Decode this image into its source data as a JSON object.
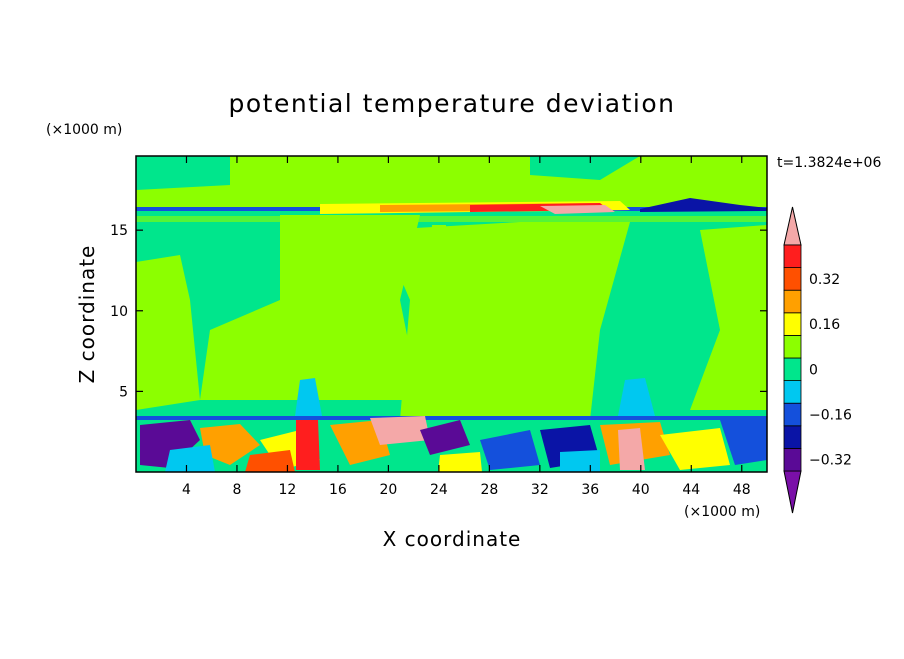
{
  "chart_data": {
    "type": "heatmap",
    "title": "potential temperature deviation",
    "xlabel": "X coordinate",
    "ylabel": "Z coordinate",
    "x_unit": "(×1000 m)",
    "y_unit": "(×1000 m)",
    "time_label": "t=1.3824e+06",
    "xlim": [
      0,
      50
    ],
    "ylim": [
      0,
      19.6
    ],
    "x_ticks": [
      4,
      8,
      12,
      16,
      20,
      24,
      28,
      32,
      36,
      40,
      44,
      48
    ],
    "y_ticks": [
      5,
      10,
      15
    ],
    "colorbar": {
      "levels": [
        {
          "color": "#7a0fa8"
        },
        {
          "color": "#5a0a96",
          "label": "−0.32"
        },
        {
          "color": "#0a14a6"
        },
        {
          "color": "#1450dc",
          "label": "−0.16"
        },
        {
          "color": "#00c8f0"
        },
        {
          "color": "#00e68c",
          "label": "0"
        },
        {
          "color": "#8cff00"
        },
        {
          "color": "#ffff00",
          "label": "0.16"
        },
        {
          "color": "#ffa000"
        },
        {
          "color": "#ff5000",
          "label": "0.32"
        },
        {
          "color": "#ff1e1e"
        },
        {
          "color": "#f4a8a8"
        }
      ]
    }
  }
}
